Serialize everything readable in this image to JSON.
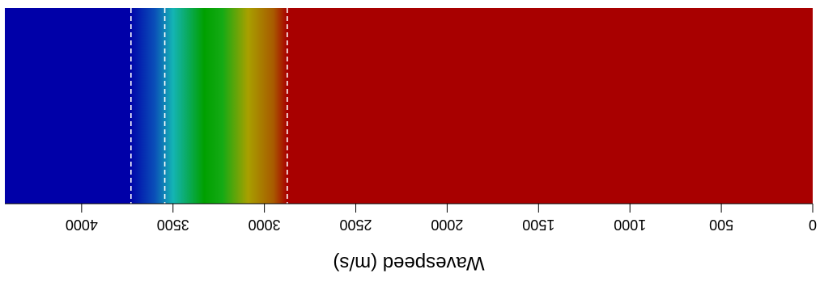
{
  "chart_data": {
    "type": "heatmap",
    "orientation": "rotated-180",
    "xlabel": "Wavespeed (m/s)",
    "xlim": [
      4420,
      0
    ],
    "x_ticks": [
      {
        "value": 4000,
        "label": "4000"
      },
      {
        "value": 3500,
        "label": "3500"
      },
      {
        "value": 3000,
        "label": "3000"
      },
      {
        "value": 2500,
        "label": "2500"
      },
      {
        "value": 2000,
        "label": "2000"
      },
      {
        "value": 1500,
        "label": "1500"
      },
      {
        "value": 1000,
        "label": "1000"
      },
      {
        "value": 500,
        "label": "500"
      },
      {
        "value": 0,
        "label": "0"
      }
    ],
    "dashed_lines": [
      3730,
      3545,
      2875
    ],
    "color_stops": [
      {
        "value": 4420,
        "color": "#0000a8"
      },
      {
        "value": 3740,
        "color": "#0000a8"
      },
      {
        "value": 3600,
        "color": "#0a4fb8"
      },
      {
        "value": 3500,
        "color": "#14b4b4"
      },
      {
        "value": 3330,
        "color": "#00a000"
      },
      {
        "value": 3230,
        "color": "#14aa14"
      },
      {
        "value": 3090,
        "color": "#a8a000"
      },
      {
        "value": 2950,
        "color": "#a85a00"
      },
      {
        "value": 2875,
        "color": "#a80000"
      },
      {
        "value": 0,
        "color": "#a80000"
      }
    ],
    "grid": false
  }
}
